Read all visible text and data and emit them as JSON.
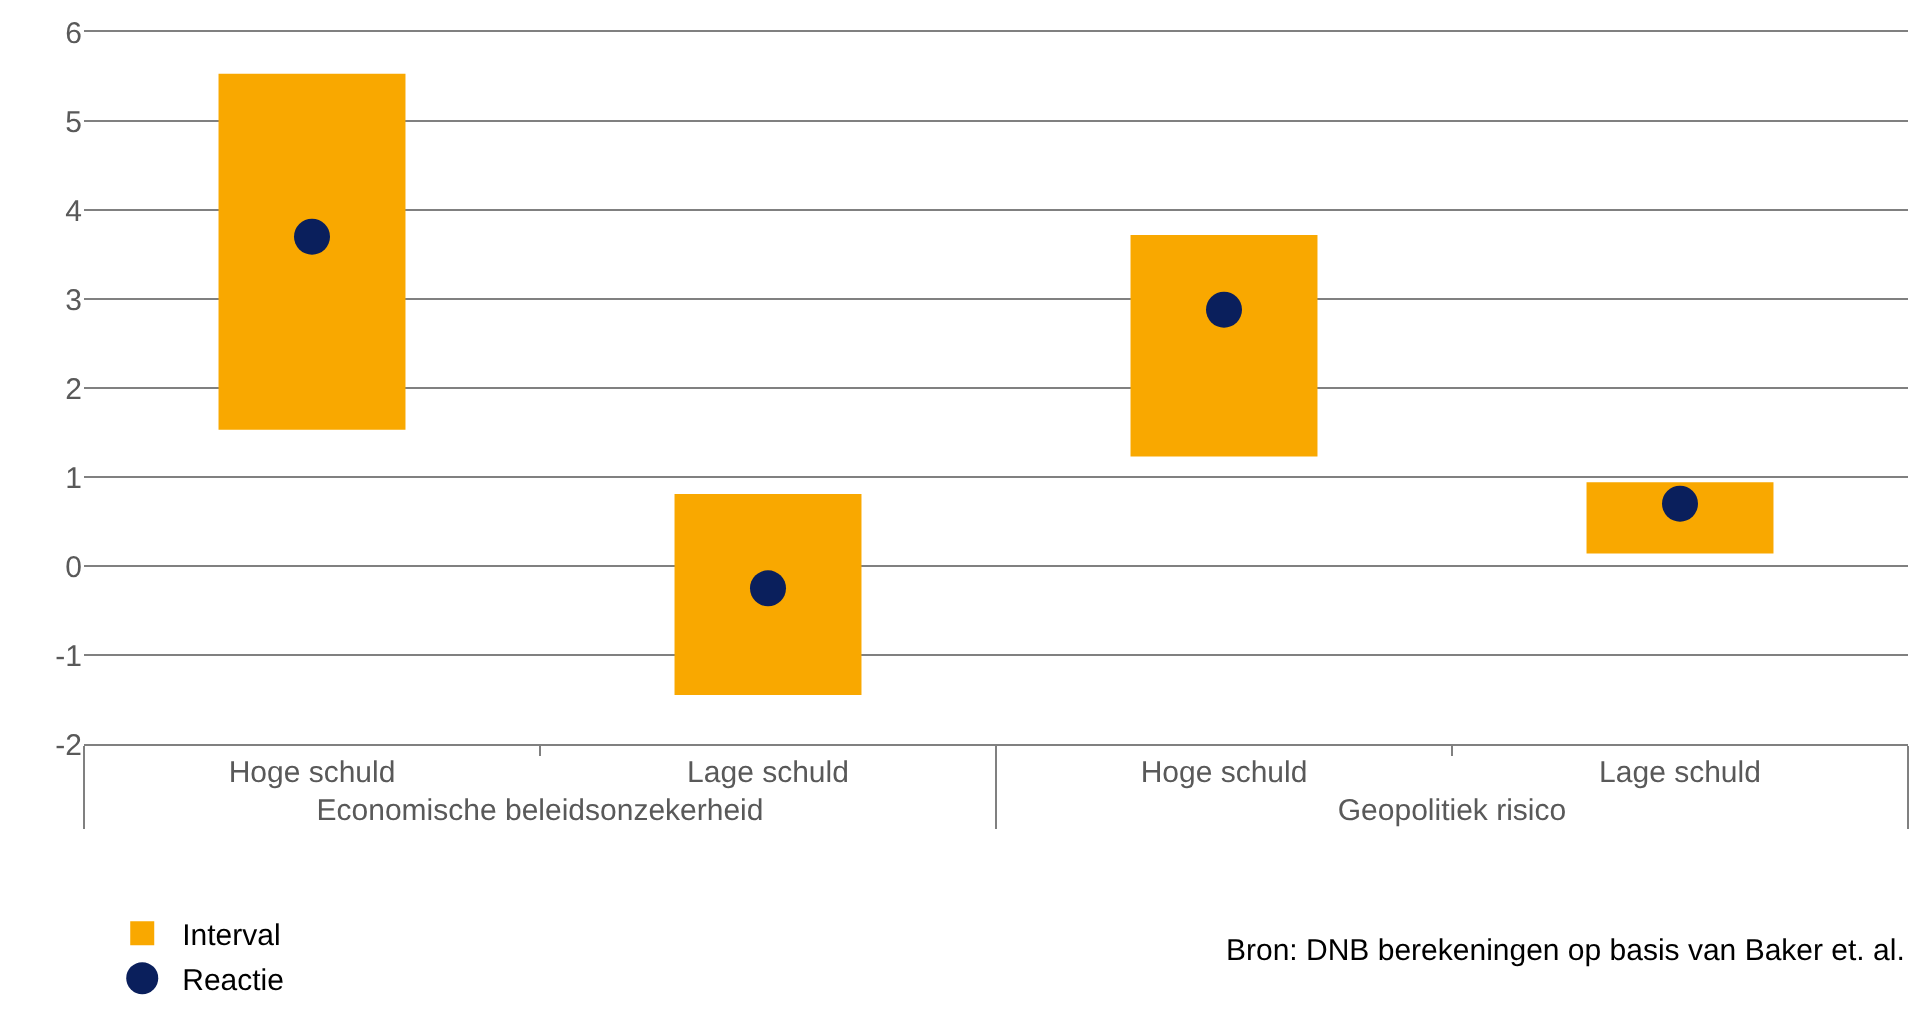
{
  "chart_data": {
    "type": "bar",
    "categories": [
      "Hoge schuld",
      "Lage schuld",
      "Hoge schuld",
      "Lage schuld"
    ],
    "series": [
      {
        "name": "Interval",
        "color": "#f9a800",
        "base": [
          1.53,
          -1.45,
          1.23,
          0.14
        ],
        "values": [
          4.0,
          2.26,
          2.49,
          0.8
        ]
      },
      {
        "name": "Reactie",
        "type": "scatter",
        "marker": "circle",
        "color": "#0a1f5c",
        "values": [
          3.7,
          -0.25,
          2.88,
          0.7
        ]
      }
    ],
    "ylim": [
      -2,
      6
    ],
    "yticks": [
      -2,
      -1,
      0,
      1,
      2,
      3,
      4,
      5,
      6
    ],
    "grid": "y",
    "legend": "bottom left",
    "annotations": [
      "Economische beleidsonzekerheid",
      "Geopolitiek risico",
      "Bron: DNB berekeningen op basis van Baker et. al."
    ]
  }
}
